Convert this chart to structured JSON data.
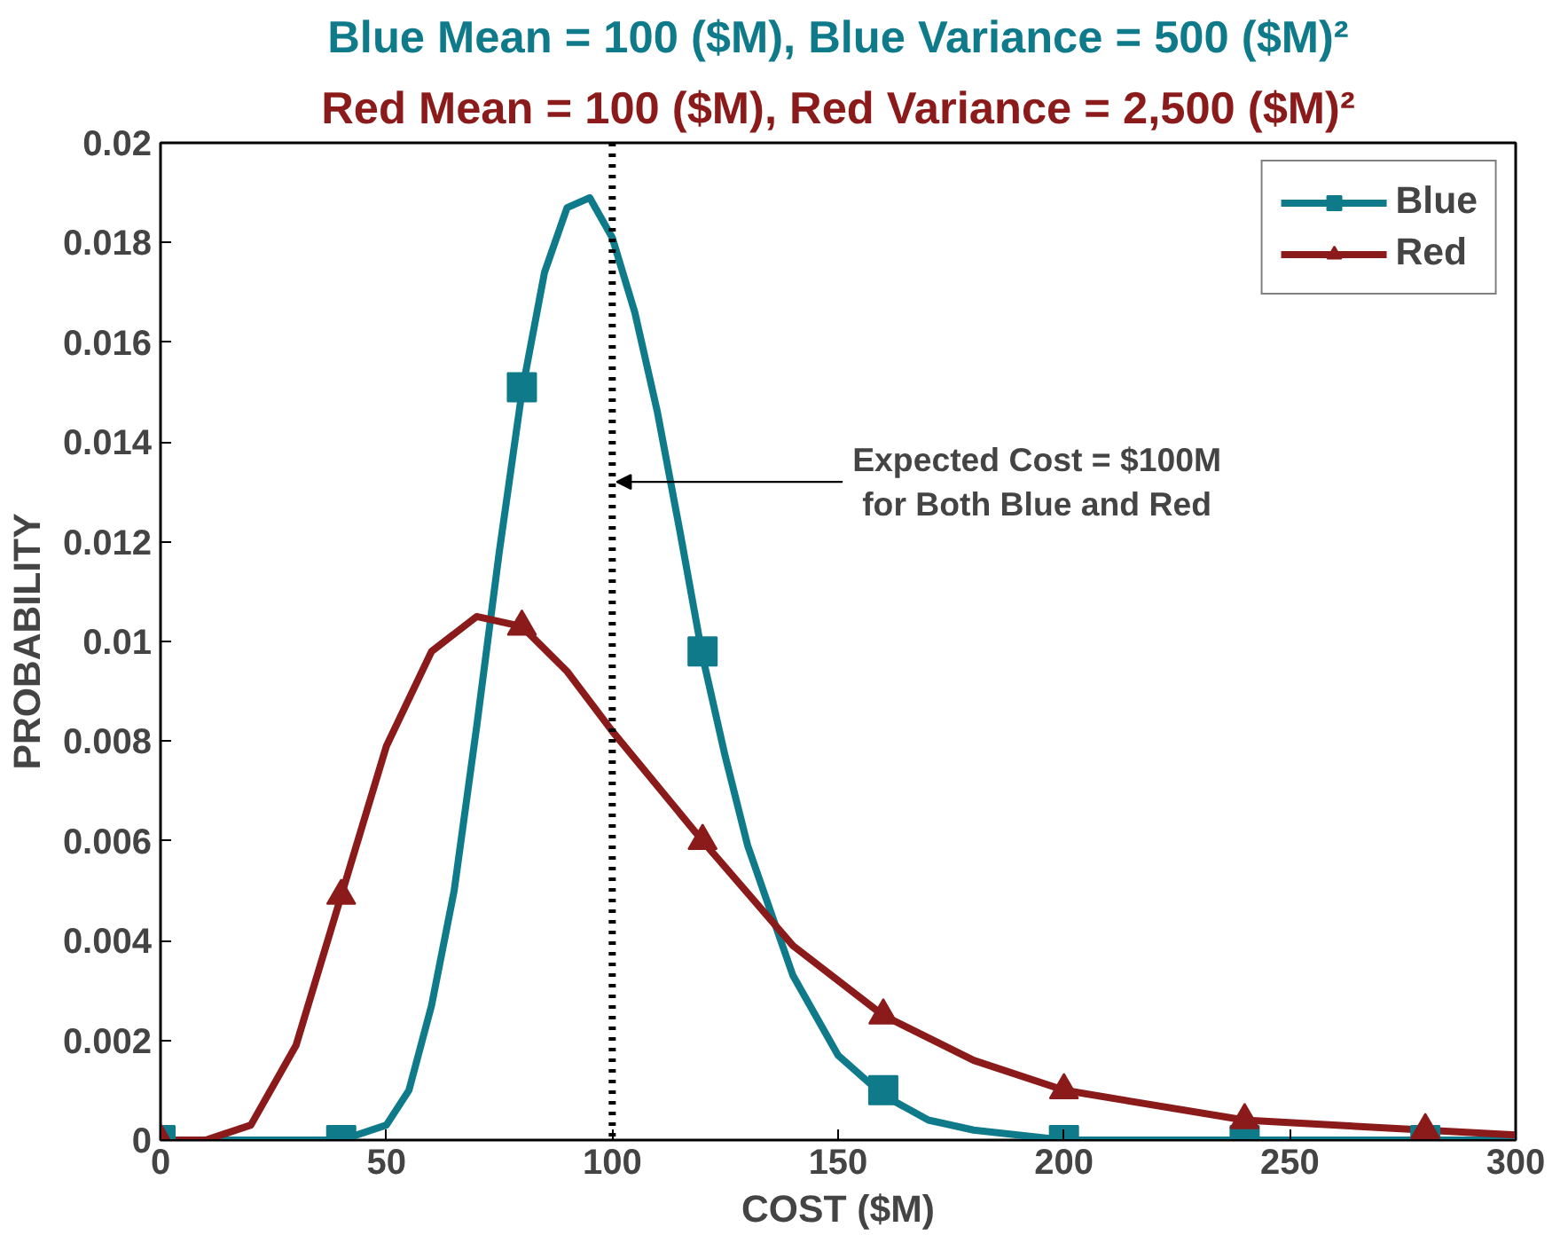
{
  "chart_data": {
    "type": "line",
    "title": "Blue Mean = 100 ($M), Blue Variance = 500 ($M)²",
    "subtitle": "Red Mean = 100 ($M), Red Variance = 2,500 ($M)²",
    "xlabel": "COST ($M)",
    "ylabel": "PROBABILITY",
    "xlim": [
      0,
      300
    ],
    "ylim": [
      0,
      0.02
    ],
    "xticks": [
      0,
      50,
      100,
      150,
      200,
      250,
      300
    ],
    "yticks": [
      0,
      0.002,
      0.004,
      0.006,
      0.008,
      0.01,
      0.012,
      0.014,
      0.016,
      0.018,
      0.02
    ],
    "grid": false,
    "legend": "top right",
    "line_style": "solid",
    "series": [
      {
        "name": "Blue",
        "color": "#0f7a8a",
        "marker": "none",
        "x": [
          0,
          30,
          40,
          50,
          55,
          60,
          65,
          70,
          75,
          80,
          85,
          90,
          95,
          100,
          105,
          110,
          115,
          120,
          125,
          130,
          140,
          150,
          160,
          170,
          180,
          200,
          250,
          300
        ],
        "values": [
          0,
          0,
          0,
          0.0003,
          0.001,
          0.0027,
          0.005,
          0.0083,
          0.0118,
          0.015,
          0.0174,
          0.0187,
          0.0189,
          0.0181,
          0.0166,
          0.0146,
          0.0122,
          0.0097,
          0.0077,
          0.0059,
          0.0033,
          0.0017,
          0.0009,
          0.0004,
          0.0002,
          0,
          0,
          0
        ]
      },
      {
        "name": "Red",
        "color": "#8b1a1a",
        "marker": "none",
        "x": [
          0,
          10,
          20,
          30,
          40,
          50,
          60,
          70,
          80,
          90,
          100,
          120,
          140,
          160,
          180,
          200,
          240,
          280,
          300
        ],
        "values": [
          0,
          0,
          0.0003,
          0.0019,
          0.0049,
          0.0079,
          0.0098,
          0.0105,
          0.0103,
          0.0094,
          0.0082,
          0.006,
          0.0039,
          0.0025,
          0.0016,
          0.001,
          0.0004,
          0.0002,
          0.0001
        ]
      },
      {
        "color": "#0f7a8a",
        "type": "scatter",
        "marker": "square",
        "x": [
          0,
          40,
          80,
          120,
          160,
          200,
          240,
          280
        ],
        "values": [
          0,
          0,
          0.0151,
          0.0098,
          0.001,
          0,
          0,
          0
        ]
      },
      {
        "color": "#8b1a1a",
        "type": "scatter",
        "marker": "triangle",
        "x": [
          0,
          40,
          80,
          120,
          160,
          200,
          240,
          280
        ],
        "values": [
          0,
          0.0049,
          0.0103,
          0.006,
          0.0025,
          0.001,
          0.0004,
          0.0002
        ]
      }
    ],
    "ref_lines": [
      {
        "axis": "x",
        "value": 100,
        "label": "Expected Cost = $100M\nfor Both Blue and Red",
        "line_style": "dotted",
        "color": "#000000"
      }
    ]
  }
}
